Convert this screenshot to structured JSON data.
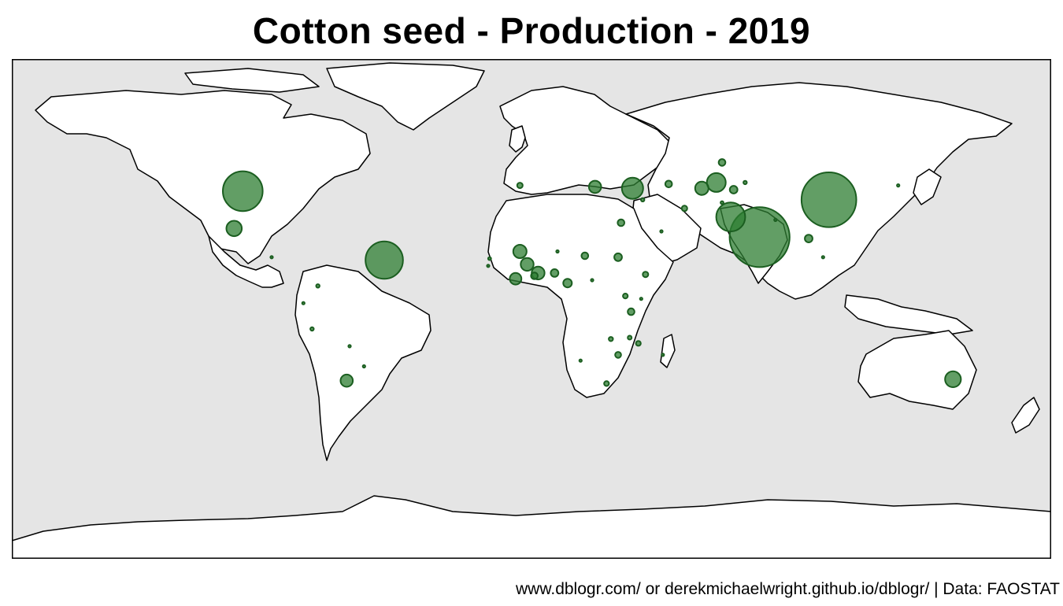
{
  "title": "Cotton seed - Production - 2019",
  "caption": "www.dblogr.com/ or derekmichaelwright.github.io/dblogr/ | Data: FAOSTAT",
  "colors": {
    "ocean": "#e5e5e5",
    "land": "#ffffff",
    "border": "#000000",
    "bubble_fill": "#2e7d32",
    "bubble_stroke": "#1b5e20"
  },
  "map": {
    "projection": "equirectangular",
    "lon_range": [
      -180,
      180
    ],
    "lat_range": [
      -90,
      84
    ],
    "symbol": "proportional-circle"
  },
  "chart_data": {
    "type": "proportional-symbol-map",
    "value_label": "Production",
    "points": [
      {
        "region": "United States",
        "lon": -100,
        "lat": 38,
        "size": 5.3
      },
      {
        "region": "Mexico",
        "lon": -103,
        "lat": 25,
        "size": 0.8
      },
      {
        "region": "Brazil",
        "lon": -51,
        "lat": 14,
        "size": 4.7
      },
      {
        "region": "Argentina",
        "lon": -64,
        "lat": -28,
        "size": 0.5
      },
      {
        "region": "Paraguay",
        "lon": -58,
        "lat": -23,
        "size": 0.02
      },
      {
        "region": "Peru",
        "lon": -76,
        "lat": -10,
        "size": 0.04
      },
      {
        "region": "Colombia",
        "lon": -74,
        "lat": 5,
        "size": 0.04
      },
      {
        "region": "Ecuador",
        "lon": -79,
        "lat": -1,
        "size": 0.01
      },
      {
        "region": "Bolivia",
        "lon": -63,
        "lat": -16,
        "size": 0.02
      },
      {
        "region": "Guatemala",
        "lon": -90,
        "lat": 15,
        "size": 0.02
      },
      {
        "region": "India",
        "lon": 79,
        "lat": 22,
        "size": 12.0
      },
      {
        "region": "China",
        "lon": 103,
        "lat": 35,
        "size": 10.0
      },
      {
        "region": "Pakistan",
        "lon": 69,
        "lat": 29,
        "size": 2.8
      },
      {
        "region": "Uzbekistan",
        "lon": 64,
        "lat": 41,
        "size": 1.2
      },
      {
        "region": "Turkmenistan",
        "lon": 59,
        "lat": 39,
        "size": 0.6
      },
      {
        "region": "Tajikistan",
        "lon": 70,
        "lat": 38.5,
        "size": 0.2
      },
      {
        "region": "Kyrgyzstan",
        "lon": 74,
        "lat": 41,
        "size": 0.04
      },
      {
        "region": "Kazakhstan",
        "lon": 66,
        "lat": 48,
        "size": 0.15
      },
      {
        "region": "Afghanistan",
        "lon": 66,
        "lat": 34,
        "size": 0.03
      },
      {
        "region": "Iran",
        "lon": 53,
        "lat": 32,
        "size": 0.1
      },
      {
        "region": "Azerbaijan",
        "lon": 47.5,
        "lat": 40.5,
        "size": 0.15
      },
      {
        "region": "Turkey",
        "lon": 35,
        "lat": 39,
        "size": 1.5
      },
      {
        "region": "Greece",
        "lon": 22,
        "lat": 39.5,
        "size": 0.5
      },
      {
        "region": "Spain",
        "lon": -4,
        "lat": 40,
        "size": 0.1
      },
      {
        "region": "Syria",
        "lon": 38.5,
        "lat": 35,
        "size": 0.04
      },
      {
        "region": "Egypt",
        "lon": 31,
        "lat": 27,
        "size": 0.15
      },
      {
        "region": "Saudi Arabia",
        "lon": 45,
        "lat": 24,
        "size": 0.01
      },
      {
        "region": "Burkina Faso",
        "lon": -1.5,
        "lat": 12.5,
        "size": 0.55
      },
      {
        "region": "Mali",
        "lon": -4,
        "lat": 17,
        "size": 0.6
      },
      {
        "region": "Benin",
        "lon": 2.3,
        "lat": 9.5,
        "size": 0.55
      },
      {
        "region": "Cote d'Ivoire",
        "lon": -5.5,
        "lat": 7.5,
        "size": 0.45
      },
      {
        "region": "Togo",
        "lon": 1,
        "lat": 8.5,
        "size": 0.15
      },
      {
        "region": "Nigeria",
        "lon": 8,
        "lat": 9.5,
        "size": 0.2
      },
      {
        "region": "Cameroon",
        "lon": 12.5,
        "lat": 6,
        "size": 0.25
      },
      {
        "region": "Chad",
        "lon": 18.5,
        "lat": 15.5,
        "size": 0.15
      },
      {
        "region": "Sudan",
        "lon": 30,
        "lat": 15,
        "size": 0.2
      },
      {
        "region": "Niger",
        "lon": 9,
        "lat": 17,
        "size": 0.01
      },
      {
        "region": "Ethiopia",
        "lon": 39.5,
        "lat": 9,
        "size": 0.1
      },
      {
        "region": "Senegal",
        "lon": -14.5,
        "lat": 14.5,
        "size": 0.03
      },
      {
        "region": "Guinea-Bissau",
        "lon": -15,
        "lat": 12,
        "size": 0.01
      },
      {
        "region": "Central African Republic",
        "lon": 21,
        "lat": 7,
        "size": 0.01
      },
      {
        "region": "Uganda",
        "lon": 32.5,
        "lat": 1.5,
        "size": 0.08
      },
      {
        "region": "Kenya",
        "lon": 38,
        "lat": 0.5,
        "size": 0.01
      },
      {
        "region": "Tanzania",
        "lon": 34.5,
        "lat": -4,
        "size": 0.15
      },
      {
        "region": "Zambia",
        "lon": 27.5,
        "lat": -13.5,
        "size": 0.06
      },
      {
        "region": "Malawi",
        "lon": 34,
        "lat": -13,
        "size": 0.05
      },
      {
        "region": "Mozambique",
        "lon": 37,
        "lat": -15,
        "size": 0.08
      },
      {
        "region": "Zimbabwe",
        "lon": 30,
        "lat": -19,
        "size": 0.12
      },
      {
        "region": "South Africa",
        "lon": 26,
        "lat": -29,
        "size": 0.08
      },
      {
        "region": "Namibia",
        "lon": 17,
        "lat": -21,
        "size": 0.01
      },
      {
        "region": "Madagascar",
        "lon": 45.5,
        "lat": -19,
        "size": 0.01
      },
      {
        "region": "Australia",
        "lon": 146,
        "lat": -27.5,
        "size": 0.85
      },
      {
        "region": "Myanmar",
        "lon": 96,
        "lat": 21.5,
        "size": 0.2
      },
      {
        "region": "Thailand",
        "lon": 101,
        "lat": 15,
        "size": 0.01
      },
      {
        "region": "North Korea",
        "lon": 127,
        "lat": 40,
        "size": 0.01
      },
      {
        "region": "Nepal",
        "lon": 84.5,
        "lat": 28,
        "size": 0.01
      }
    ]
  }
}
